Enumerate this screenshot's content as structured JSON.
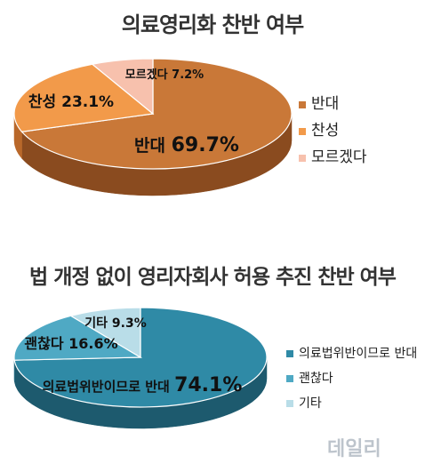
{
  "chart_data": [
    {
      "type": "pie",
      "title": "의료영리화 찬반 여부",
      "colors": [
        "#c97838",
        "#f29a4a",
        "#f7c1ad"
      ],
      "side_colors": [
        "#8a4b1f",
        "#b9682a",
        "#c9907d"
      ],
      "slices": [
        {
          "name": "반대",
          "value": 69.7,
          "label_prefix": "반대",
          "label_value": "69.7%"
        },
        {
          "name": "찬성",
          "value": 23.1,
          "label_prefix": "찬성",
          "label_value": "23.1%"
        },
        {
          "name": "모르겠다",
          "value": 7.2,
          "label_prefix": "모르겠다",
          "label_value": "7.2%"
        }
      ],
      "legend": [
        "반대",
        "찬성",
        "모르겠다"
      ]
    },
    {
      "type": "pie",
      "title": "법 개정 없이 영리자회사 허용 추진 찬반 여부",
      "colors": [
        "#2f8aa6",
        "#4fa9c4",
        "#b9dde8"
      ],
      "side_colors": [
        "#1d5a6e",
        "#2f7890",
        "#86aebb"
      ],
      "slices": [
        {
          "name": "의료법위반이므로 반대",
          "value": 74.1,
          "label_prefix": "의료법위반이므로 반대",
          "label_value": "74.1%"
        },
        {
          "name": "괜찮다",
          "value": 16.6,
          "label_prefix": "괜찮다",
          "label_value": "16.6%"
        },
        {
          "name": "기타",
          "value": 9.3,
          "label_prefix": "기타",
          "label_value": "9.3%"
        }
      ],
      "legend": [
        "의료법위반이므로 반대",
        "괜찮다",
        "기타"
      ]
    }
  ],
  "watermark": "데일리"
}
